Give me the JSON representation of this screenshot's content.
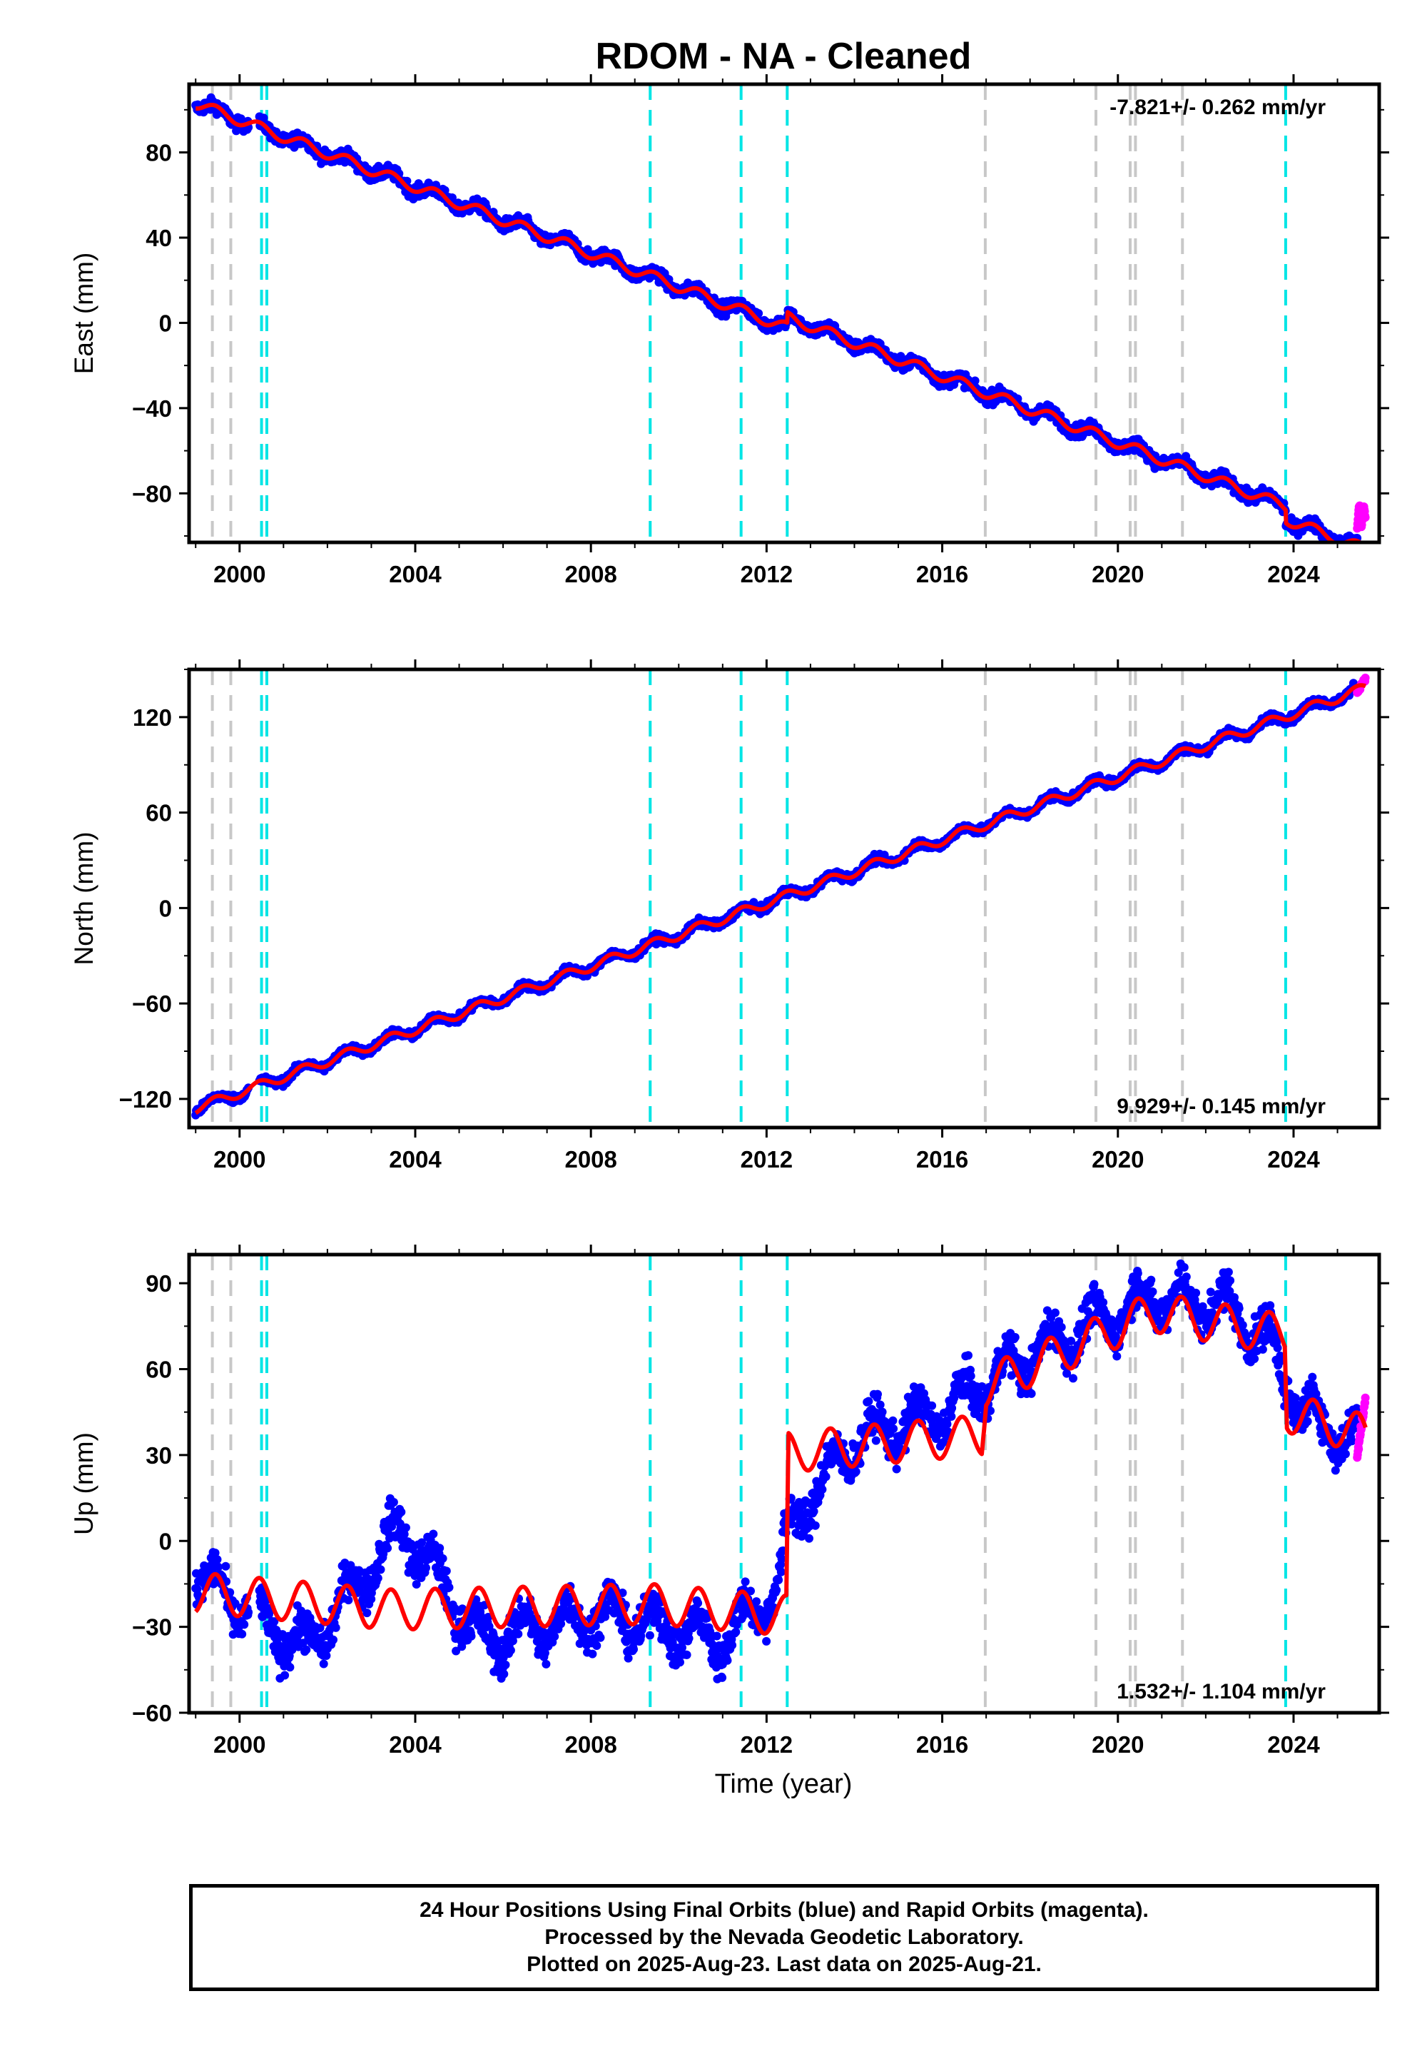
{
  "chart_data": {
    "type": "scatter",
    "title": "RDOM  - NA - Cleaned",
    "xlabel": "Time (year)",
    "xlim": [
      1998.85,
      2025.95
    ],
    "xticks": [
      2000,
      2004,
      2008,
      2012,
      2016,
      2020,
      2024
    ],
    "xtick_labels": [
      "2000",
      "2004",
      "2008",
      "2012",
      "2016",
      "2020",
      "2024"
    ],
    "grid": false,
    "colors": {
      "final_orbits": "#0000ff",
      "rapid_orbits": "#ff00ff",
      "model": "#ff0000",
      "equipment_change": "#00e5e5",
      "other_event": "#c8c8c8"
    },
    "event_lines": {
      "equipment_change": [
        2000.5,
        2000.62,
        2009.35,
        2011.42,
        2012.47,
        2023.82
      ],
      "other_event": [
        1999.38,
        1999.8,
        2016.98,
        2019.5,
        2020.28,
        2020.4,
        2021.47
      ]
    },
    "panels": [
      {
        "name": "east",
        "ylabel": "East (mm)",
        "ylim": [
          -103,
          112
        ],
        "yticks": [
          -80,
          -40,
          0,
          40,
          80
        ],
        "ytick_labels": [
          "−80",
          "−40",
          "0",
          "40",
          "80"
        ],
        "rate_label": "-7.821+/- 0.262 mm/yr",
        "rate_position": "top-right",
        "rate_mm_per_yr": -7.821,
        "rate_uncertainty": 0.262,
        "seasonal_amplitude": 2.5,
        "noise": 3,
        "steps": [
          {
            "t": 2012.47,
            "dy": 5
          },
          {
            "t": 2023.82,
            "dy": -6
          }
        ],
        "model_anchor": [
          1999.0,
          103
        ],
        "rapid_range": [
          2025.45,
          2025.64
        ],
        "rapid_y": [
          -96,
          -87
        ]
      },
      {
        "name": "north",
        "ylabel": "North (mm)",
        "ylim": [
          -138,
          150
        ],
        "yticks": [
          -120,
          -60,
          0,
          60,
          120
        ],
        "ytick_labels": [
          "−120",
          "−60",
          "0",
          "60",
          "120"
        ],
        "rate_label": "9.929+/- 0.145 mm/yr",
        "rate_position": "bottom-right",
        "rate_mm_per_yr": 9.929,
        "rate_uncertainty": 0.145,
        "seasonal_amplitude": 3,
        "noise": 2.5,
        "steps": [],
        "model_anchor": [
          1999.0,
          -126
        ],
        "rapid_range": [
          2025.45,
          2025.64
        ],
        "rapid_y": [
          136,
          145
        ]
      },
      {
        "name": "up",
        "ylabel": "Up (mm)",
        "ylim": [
          -60,
          100
        ],
        "yticks": [
          -60,
          -30,
          0,
          30,
          60,
          90
        ],
        "ytick_labels": [
          "−60",
          "−30",
          "0",
          "30",
          "60",
          "90"
        ],
        "rate_label": "1.532+/- 1.104 mm/yr",
        "rate_position": "bottom-right",
        "rate_mm_per_yr": 1.532,
        "rate_uncertainty": 1.104,
        "seasonal_amplitude": 7,
        "noise": 7,
        "trend": [
          [
            1999.0,
            -18
          ],
          [
            2003.5,
            -24
          ],
          [
            2009.35,
            -22
          ],
          [
            2012.45,
            -26
          ],
          [
            2012.5,
            31
          ],
          [
            2016.9,
            37
          ],
          [
            2017.0,
            54
          ],
          [
            2020.8,
            80
          ],
          [
            2023.8,
            72
          ],
          [
            2023.85,
            45
          ],
          [
            2025.64,
            37
          ]
        ],
        "data_trend": [
          [
            1999.0,
            -12
          ],
          [
            2001.5,
            -38
          ],
          [
            2003.7,
            5
          ],
          [
            2005.5,
            -35
          ],
          [
            2008.2,
            -25
          ],
          [
            2011.0,
            -35
          ],
          [
            2012.3,
            -15
          ],
          [
            2012.5,
            5
          ],
          [
            2014.0,
            35
          ],
          [
            2016.0,
            45
          ],
          [
            2018.0,
            65
          ],
          [
            2020.8,
            85
          ],
          [
            2022.5,
            82
          ],
          [
            2023.5,
            68
          ],
          [
            2024.2,
            45
          ],
          [
            2025.64,
            33
          ]
        ],
        "model_anchor": [
          1999.0,
          -18
        ],
        "rapid_range": [
          2025.45,
          2025.64
        ],
        "rapid_y": [
          30,
          50
        ]
      }
    ]
  },
  "footer": {
    "line1": "24 Hour Positions Using Final Orbits (blue) and Rapid Orbits (magenta).",
    "line2": "Processed by the Nevada Geodetic Laboratory.",
    "line3": "Plotted on 2025-Aug-23. Last data on 2025-Aug-21."
  }
}
